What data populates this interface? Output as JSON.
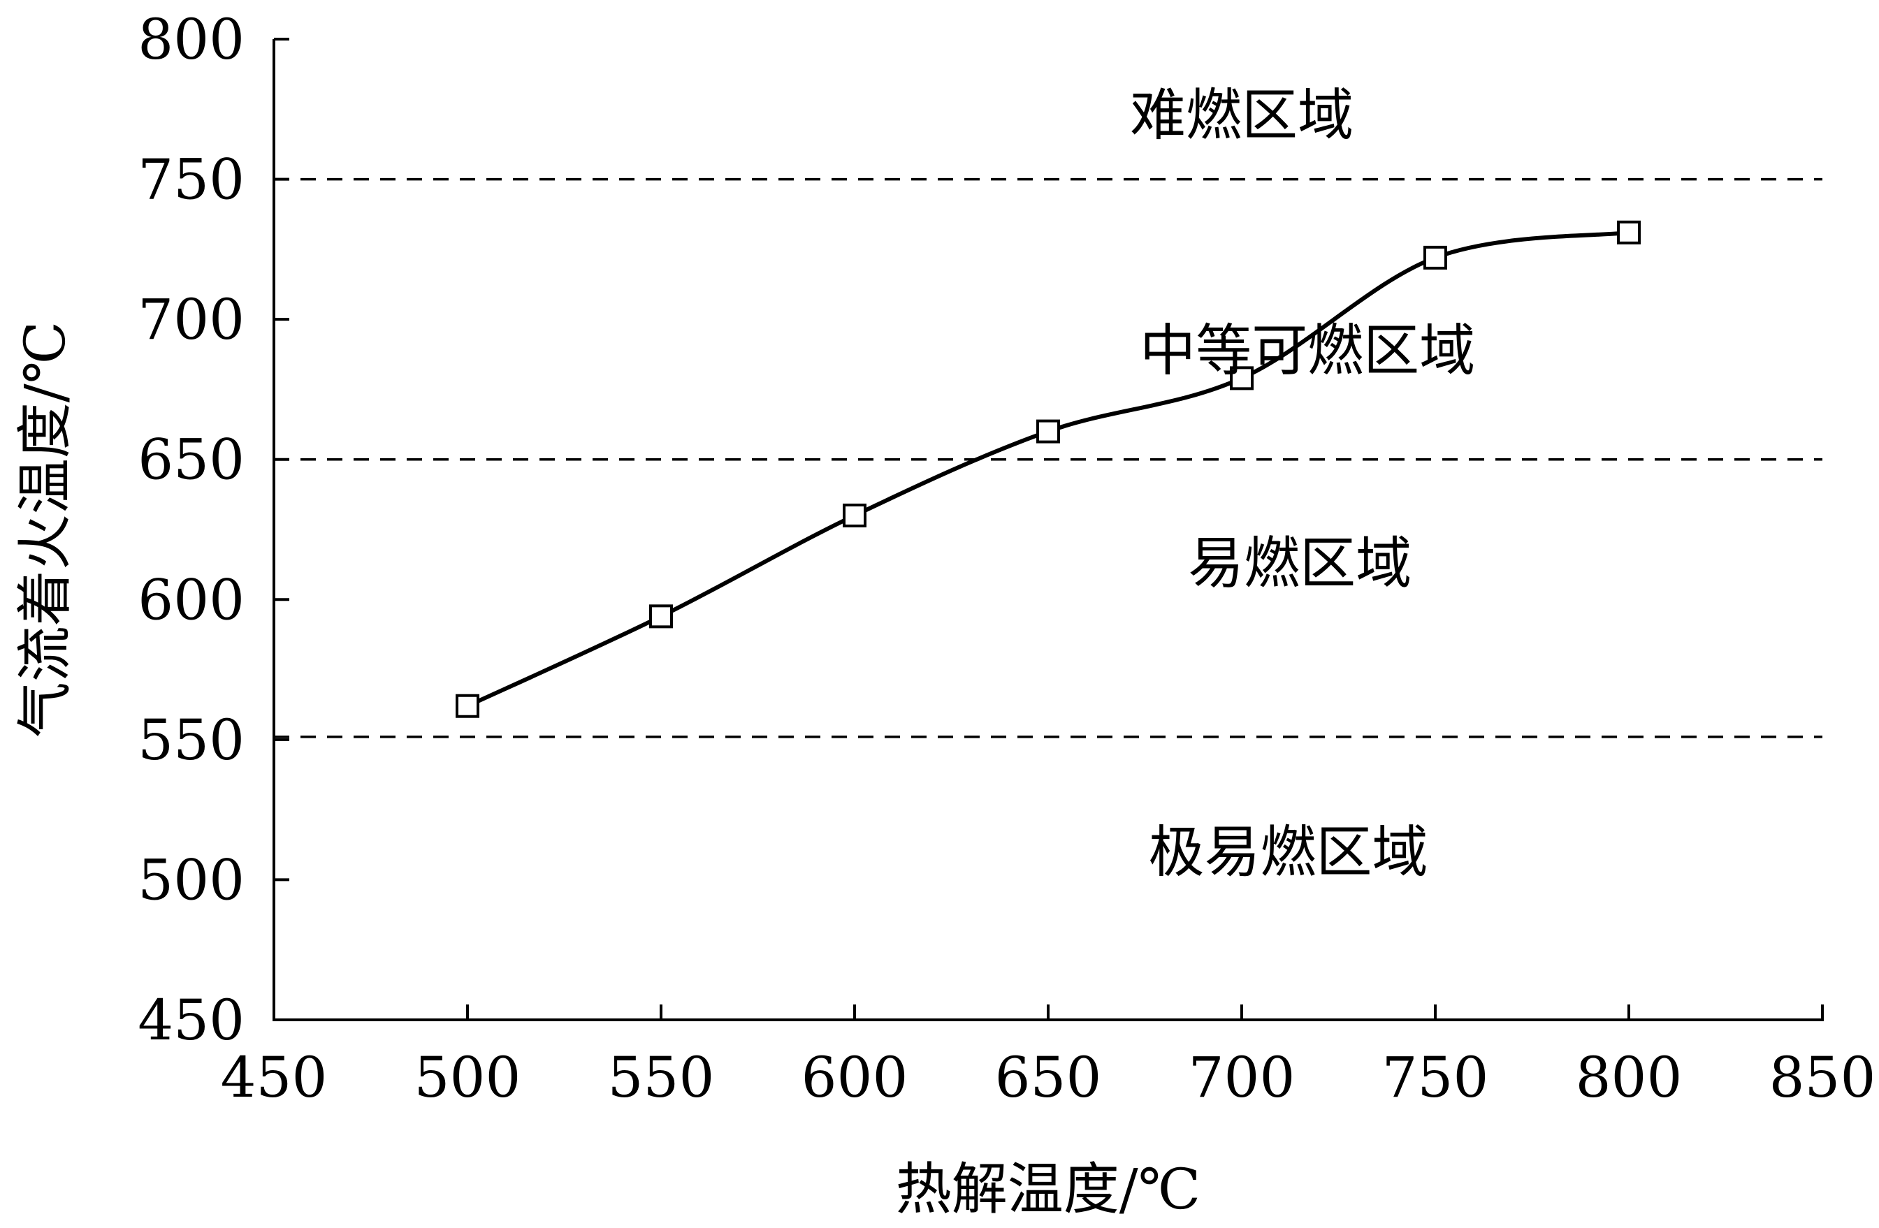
{
  "chart_data": {
    "type": "line",
    "xlabel": "热解温度/℃",
    "ylabel": "气流着火温度/℃",
    "xlim": [
      450,
      850
    ],
    "ylim": [
      450,
      800
    ],
    "xticks": [
      "450",
      "500",
      "550",
      "600",
      "650",
      "700",
      "750",
      "800",
      "850"
    ],
    "yticks": [
      "450",
      "500",
      "550",
      "600",
      "650",
      "700",
      "750",
      "800"
    ],
    "series": [
      {
        "x": [
          500,
          550,
          600,
          650,
          700,
          750,
          800
        ],
        "y": [
          562,
          594,
          630,
          660,
          679,
          722,
          731
        ]
      }
    ],
    "thresholds": [
      750,
      650,
      551
    ],
    "zones": [
      {
        "label": "难燃区域",
        "x": 700,
        "y": 766
      },
      {
        "label": "中等可燃区域",
        "x": 717,
        "y": 682
      },
      {
        "label": "易燃区域",
        "x": 715,
        "y": 606
      },
      {
        "label": "极易燃区域",
        "x": 712,
        "y": 503
      }
    ],
    "grid": false,
    "legend": "none",
    "line_color": "#000000",
    "marker": "open-square"
  }
}
